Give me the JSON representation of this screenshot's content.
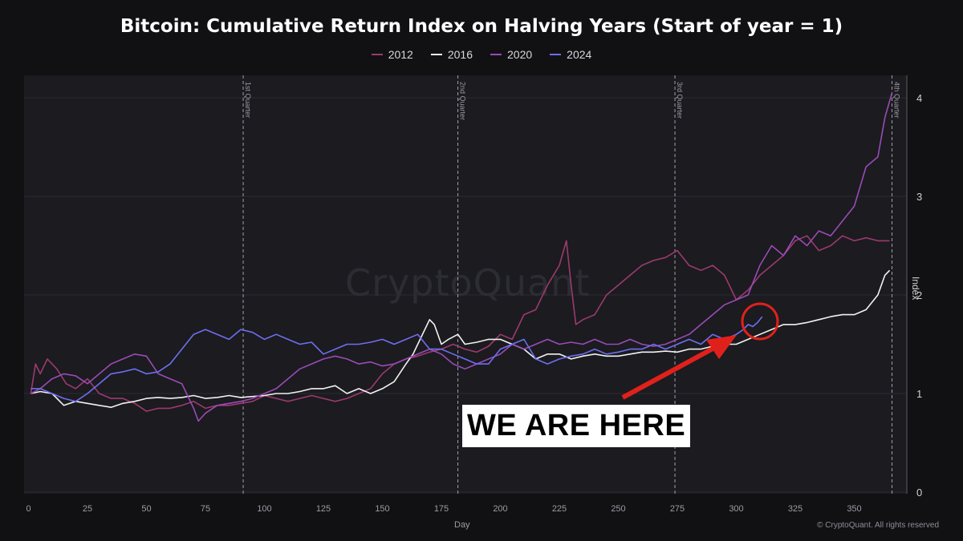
{
  "chart_data": {
    "type": "line",
    "title": "Bitcoin: Cumulative Return Index on Halving Years (Start of year = 1)",
    "xlabel": "Day",
    "ylabel": "Index",
    "xlim": [
      -2,
      372
    ],
    "ylim": [
      0,
      4.2
    ],
    "x_ticks": [
      0,
      25,
      50,
      75,
      100,
      125,
      150,
      175,
      200,
      225,
      250,
      275,
      300,
      325,
      350
    ],
    "y_ticks": [
      0,
      1,
      2,
      3,
      4
    ],
    "grid": "horizontal",
    "legend_position": "top",
    "quarter_markers": [
      {
        "day": 91,
        "label": "1st Quarter"
      },
      {
        "day": 182,
        "label": "2nd Quarter"
      },
      {
        "day": 274,
        "label": "3rd Quarter"
      },
      {
        "day": 366,
        "label": "4th Quarter"
      }
    ],
    "series": [
      {
        "name": "2012",
        "color": "#9c3a6e",
        "x": [
          1,
          3,
          5,
          8,
          12,
          16,
          20,
          25,
          30,
          35,
          40,
          45,
          50,
          55,
          60,
          65,
          70,
          75,
          80,
          85,
          90,
          95,
          100,
          105,
          110,
          115,
          120,
          125,
          130,
          135,
          140,
          145,
          150,
          155,
          160,
          165,
          170,
          175,
          180,
          185,
          190,
          195,
          200,
          205,
          210,
          215,
          220,
          225,
          228,
          230,
          232,
          235,
          240,
          245,
          250,
          255,
          260,
          265,
          270,
          275,
          280,
          285,
          290,
          295,
          300,
          305,
          310,
          315,
          320,
          325,
          330,
          335,
          340,
          345,
          350,
          355,
          360,
          365
        ],
        "values": [
          1.0,
          1.3,
          1.2,
          1.35,
          1.25,
          1.1,
          1.05,
          1.15,
          1.0,
          0.95,
          0.95,
          0.9,
          0.82,
          0.85,
          0.85,
          0.88,
          0.92,
          0.85,
          0.88,
          0.88,
          0.9,
          0.92,
          0.98,
          0.95,
          0.92,
          0.95,
          0.98,
          0.95,
          0.92,
          0.95,
          1.0,
          1.05,
          1.2,
          1.3,
          1.35,
          1.38,
          1.42,
          1.45,
          1.5,
          1.45,
          1.42,
          1.48,
          1.6,
          1.55,
          1.8,
          1.85,
          2.1,
          2.3,
          2.55,
          2.1,
          1.7,
          1.75,
          1.8,
          2.0,
          2.1,
          2.2,
          2.3,
          2.35,
          2.38,
          2.45,
          2.3,
          2.25,
          2.3,
          2.2,
          1.95,
          2.05,
          2.2,
          2.3,
          2.4,
          2.55,
          2.6,
          2.45,
          2.5,
          2.6,
          2.55,
          2.58,
          2.55,
          2.55
        ]
      },
      {
        "name": "2016",
        "color": "#f2f2f2",
        "x": [
          1,
          5,
          10,
          15,
          20,
          25,
          30,
          35,
          40,
          45,
          50,
          55,
          60,
          65,
          70,
          75,
          80,
          85,
          90,
          95,
          100,
          105,
          110,
          115,
          120,
          125,
          130,
          135,
          140,
          145,
          150,
          155,
          160,
          163,
          166,
          170,
          172,
          175,
          178,
          182,
          185,
          190,
          195,
          200,
          205,
          210,
          215,
          220,
          225,
          230,
          235,
          240,
          245,
          250,
          255,
          260,
          265,
          270,
          275,
          280,
          285,
          290,
          295,
          300,
          305,
          310,
          315,
          320,
          325,
          330,
          335,
          340,
          345,
          350,
          355,
          360,
          363,
          365
        ],
        "values": [
          1.0,
          1.02,
          1.0,
          0.88,
          0.92,
          0.9,
          0.88,
          0.86,
          0.9,
          0.92,
          0.95,
          0.96,
          0.95,
          0.96,
          0.98,
          0.95,
          0.96,
          0.98,
          0.96,
          0.97,
          0.98,
          1.0,
          1.0,
          1.02,
          1.05,
          1.05,
          1.08,
          1.0,
          1.05,
          1.0,
          1.05,
          1.12,
          1.3,
          1.4,
          1.55,
          1.75,
          1.7,
          1.5,
          1.55,
          1.6,
          1.5,
          1.52,
          1.55,
          1.55,
          1.5,
          1.45,
          1.35,
          1.4,
          1.4,
          1.35,
          1.38,
          1.4,
          1.38,
          1.38,
          1.4,
          1.42,
          1.42,
          1.43,
          1.42,
          1.45,
          1.45,
          1.48,
          1.5,
          1.5,
          1.55,
          1.6,
          1.65,
          1.7,
          1.7,
          1.72,
          1.75,
          1.78,
          1.8,
          1.8,
          1.85,
          2.0,
          2.2,
          2.25
        ]
      },
      {
        "name": "2020",
        "color": "#9a4bb5",
        "x": [
          1,
          5,
          10,
          15,
          20,
          25,
          30,
          35,
          40,
          45,
          50,
          55,
          60,
          65,
          70,
          72,
          75,
          80,
          85,
          90,
          95,
          100,
          105,
          110,
          115,
          120,
          125,
          130,
          135,
          140,
          145,
          150,
          155,
          160,
          165,
          170,
          175,
          180,
          185,
          190,
          195,
          200,
          205,
          210,
          215,
          220,
          225,
          230,
          235,
          240,
          245,
          250,
          255,
          260,
          265,
          270,
          275,
          280,
          285,
          290,
          295,
          300,
          305,
          310,
          315,
          320,
          325,
          330,
          335,
          340,
          345,
          350,
          355,
          360,
          363,
          366
        ],
        "values": [
          1.0,
          1.05,
          1.15,
          1.2,
          1.18,
          1.1,
          1.2,
          1.3,
          1.35,
          1.4,
          1.38,
          1.2,
          1.15,
          1.1,
          0.85,
          0.72,
          0.8,
          0.88,
          0.9,
          0.92,
          0.95,
          1.0,
          1.05,
          1.15,
          1.25,
          1.3,
          1.35,
          1.38,
          1.35,
          1.3,
          1.32,
          1.28,
          1.3,
          1.35,
          1.4,
          1.45,
          1.4,
          1.3,
          1.25,
          1.3,
          1.35,
          1.4,
          1.5,
          1.45,
          1.5,
          1.55,
          1.5,
          1.52,
          1.5,
          1.55,
          1.5,
          1.5,
          1.55,
          1.5,
          1.48,
          1.5,
          1.55,
          1.6,
          1.7,
          1.8,
          1.9,
          1.95,
          2.0,
          2.3,
          2.5,
          2.4,
          2.6,
          2.5,
          2.65,
          2.6,
          2.75,
          2.9,
          3.3,
          3.4,
          3.8,
          4.05
        ]
      },
      {
        "name": "2024",
        "color": "#6e6ef0",
        "x": [
          1,
          5,
          10,
          15,
          20,
          25,
          30,
          35,
          40,
          45,
          50,
          55,
          60,
          65,
          70,
          75,
          80,
          85,
          90,
          95,
          100,
          105,
          110,
          115,
          120,
          125,
          130,
          135,
          140,
          145,
          150,
          155,
          160,
          165,
          170,
          175,
          180,
          185,
          190,
          195,
          200,
          205,
          210,
          215,
          220,
          225,
          230,
          235,
          240,
          245,
          250,
          255,
          260,
          265,
          270,
          275,
          280,
          285,
          290,
          295,
          300,
          303,
          305,
          307,
          309,
          311
        ],
        "values": [
          1.05,
          1.05,
          1.0,
          0.95,
          0.92,
          1.0,
          1.1,
          1.2,
          1.22,
          1.25,
          1.2,
          1.22,
          1.3,
          1.45,
          1.6,
          1.65,
          1.6,
          1.55,
          1.65,
          1.62,
          1.55,
          1.6,
          1.55,
          1.5,
          1.52,
          1.4,
          1.45,
          1.5,
          1.5,
          1.52,
          1.55,
          1.5,
          1.55,
          1.6,
          1.45,
          1.45,
          1.4,
          1.35,
          1.3,
          1.3,
          1.45,
          1.5,
          1.55,
          1.35,
          1.3,
          1.35,
          1.38,
          1.4,
          1.45,
          1.4,
          1.42,
          1.45,
          1.45,
          1.5,
          1.45,
          1.5,
          1.55,
          1.5,
          1.6,
          1.55,
          1.6,
          1.65,
          1.7,
          1.68,
          1.72,
          1.78
        ]
      }
    ],
    "annotations": [
      "WE ARE HERE"
    ]
  },
  "watermark": "CryptoQuant",
  "copyright": "© CryptoQuant. All rights reserved",
  "callout_color": "#e0211b"
}
